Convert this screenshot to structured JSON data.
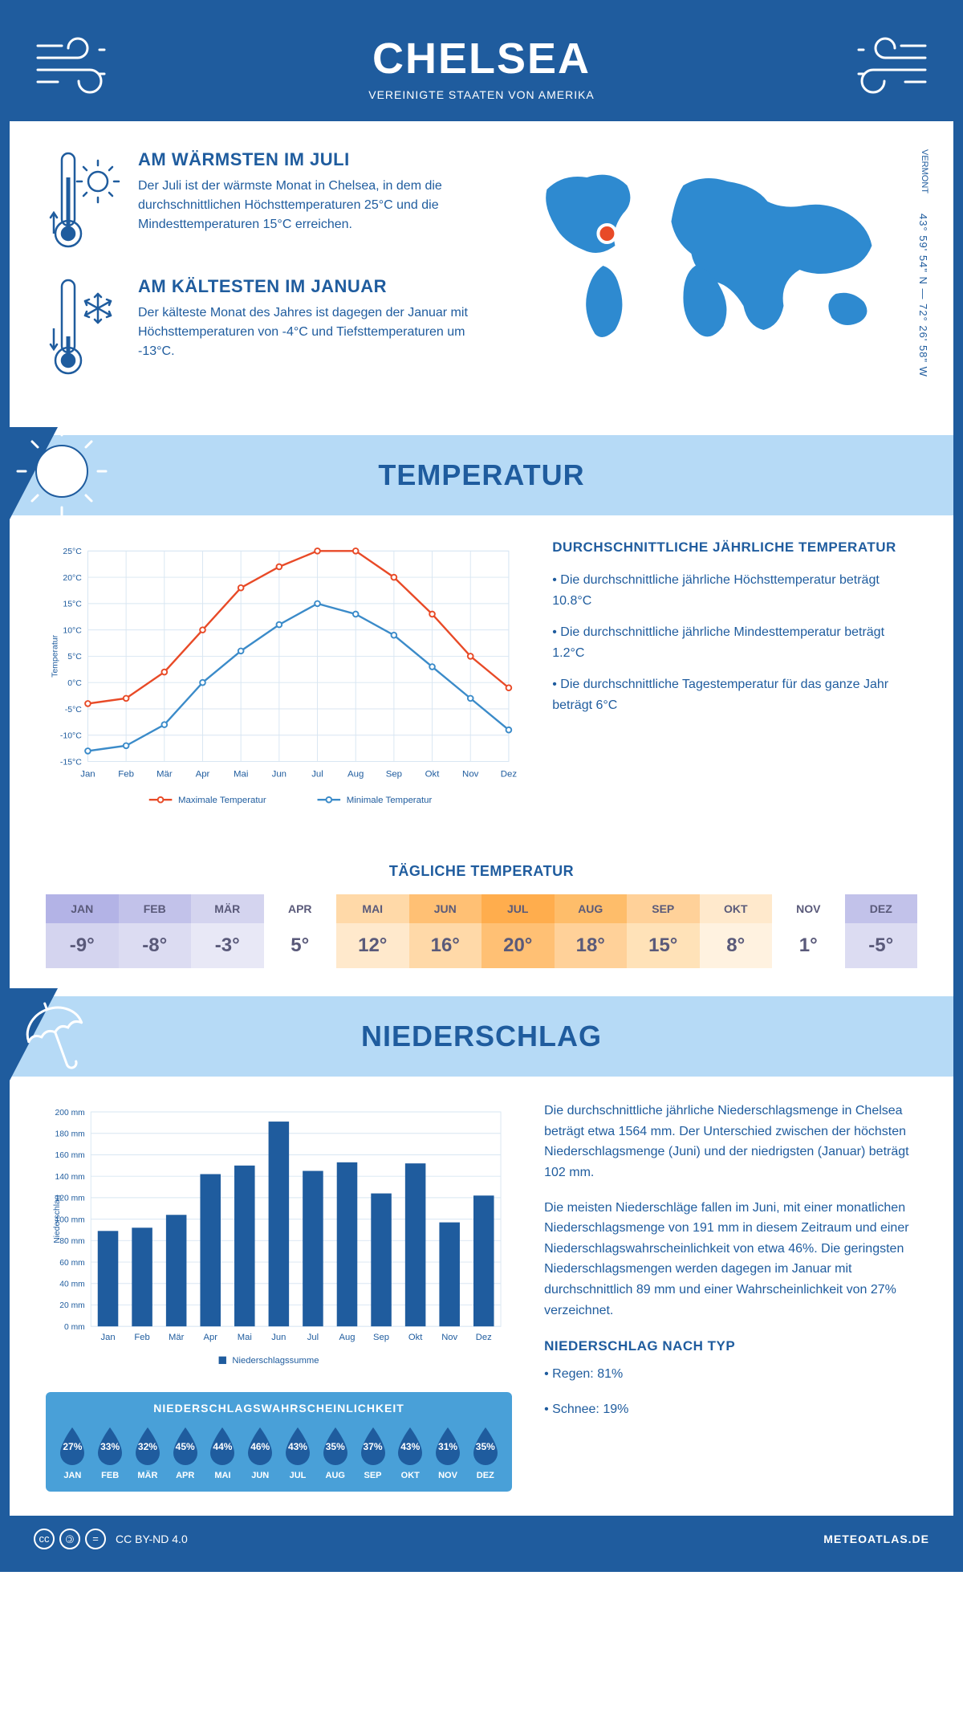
{
  "header": {
    "title": "CHELSEA",
    "subtitle": "VEREINIGTE STAATEN VON AMERIKA"
  },
  "location": {
    "region": "VERMONT",
    "coords": "43° 59' 54\" N — 72° 26' 58\" W",
    "marker_color": "#e84a27"
  },
  "warmest": {
    "title": "AM WÄRMSTEN IM JULI",
    "text": "Der Juli ist der wärmste Monat in Chelsea, in dem die durchschnittlichen Höchsttemperaturen 25°C und die Mindesttemperaturen 15°C erreichen."
  },
  "coldest": {
    "title": "AM KÄLTESTEN IM JANUAR",
    "text": "Der kälteste Monat des Jahres ist dagegen der Januar mit Höchsttemperaturen von -4°C und Tiefsttemperaturen um -13°C."
  },
  "temp_section": {
    "banner": "TEMPERATUR",
    "chart": {
      "type": "line",
      "months": [
        "Jan",
        "Feb",
        "Mär",
        "Apr",
        "Mai",
        "Jun",
        "Jul",
        "Aug",
        "Sep",
        "Okt",
        "Nov",
        "Dez"
      ],
      "max_values": [
        -4,
        -3,
        2,
        10,
        18,
        22,
        25,
        25,
        20,
        13,
        5,
        -1
      ],
      "min_values": [
        -13,
        -12,
        -8,
        0,
        6,
        11,
        15,
        13,
        9,
        3,
        -3,
        -9
      ],
      "max_color": "#e84a27",
      "min_color": "#3b8bc9",
      "ylabel": "Temperatur",
      "ylim": [
        -15,
        25
      ],
      "ytick_step": 5,
      "grid_color": "#d8e6f2",
      "legend_max": "Maximale Temperatur",
      "legend_min": "Minimale Temperatur"
    },
    "info_title": "DURCHSCHNITTLICHE JÄHRLICHE TEMPERATUR",
    "info_points": [
      "• Die durchschnittliche jährliche Höchsttemperatur beträgt 10.8°C",
      "• Die durchschnittliche jährliche Mindesttemperatur beträgt 1.2°C",
      "• Die durchschnittliche Tagestemperatur für das ganze Jahr beträgt 6°C"
    ]
  },
  "daily": {
    "title": "TÄGLICHE TEMPERATUR",
    "months": [
      "JAN",
      "FEB",
      "MÄR",
      "APR",
      "MAI",
      "JUN",
      "JUL",
      "AUG",
      "SEP",
      "OKT",
      "NOV",
      "DEZ"
    ],
    "values": [
      "-9°",
      "-8°",
      "-3°",
      "5°",
      "12°",
      "16°",
      "20°",
      "18°",
      "15°",
      "8°",
      "1°",
      "-5°"
    ],
    "head_colors": [
      "#b3b3e6",
      "#c2c2ea",
      "#d4d4ef",
      "#ffffff",
      "#ffd9a8",
      "#ffc074",
      "#ffad4d",
      "#febd6a",
      "#ffd199",
      "#ffe9cc",
      "#ffffff",
      "#c2c2ea"
    ],
    "body_colors": [
      "#d4d4ef",
      "#dcdcf2",
      "#e8e8f6",
      "#ffffff",
      "#ffe9cc",
      "#ffd9a8",
      "#ffc074",
      "#ffd199",
      "#ffe2b8",
      "#fff2e0",
      "#ffffff",
      "#dcdcf2"
    ],
    "text_color": "#5a5a7a",
    "warm_text_color": "#5a5a7a"
  },
  "precip_section": {
    "banner": "NIEDERSCHLAG",
    "chart": {
      "type": "bar",
      "months": [
        "Jan",
        "Feb",
        "Mär",
        "Apr",
        "Mai",
        "Jun",
        "Jul",
        "Aug",
        "Sep",
        "Okt",
        "Nov",
        "Dez"
      ],
      "values": [
        89,
        92,
        104,
        142,
        150,
        191,
        145,
        153,
        124,
        152,
        97,
        122
      ],
      "bar_color": "#1f5c9e",
      "ylabel": "Niederschlag",
      "ylim": [
        0,
        200
      ],
      "ytick_step": 20,
      "legend": "Niederschlagssumme",
      "grid_color": "#d8e6f2"
    },
    "text1": "Die durchschnittliche jährliche Niederschlagsmenge in Chelsea beträgt etwa 1564 mm. Der Unterschied zwischen der höchsten Niederschlagsmenge (Juni) und der niedrigsten (Januar) beträgt 102 mm.",
    "text2": "Die meisten Niederschläge fallen im Juni, mit einer monatlichen Niederschlagsmenge von 191 mm in diesem Zeitraum und einer Niederschlagswahrscheinlichkeit von etwa 46%. Die geringsten Niederschlagsmengen werden dagegen im Januar mit durchschnittlich 89 mm und einer Wahrscheinlichkeit von 27% verzeichnet.",
    "type_title": "NIEDERSCHLAG NACH TYP",
    "type_points": [
      "• Regen: 81%",
      "• Schnee: 19%"
    ]
  },
  "probability": {
    "title": "NIEDERSCHLAGSWAHRSCHEINLICHKEIT",
    "months": [
      "JAN",
      "FEB",
      "MÄR",
      "APR",
      "MAI",
      "JUN",
      "JUL",
      "AUG",
      "SEP",
      "OKT",
      "NOV",
      "DEZ"
    ],
    "values": [
      "27%",
      "33%",
      "32%",
      "45%",
      "44%",
      "46%",
      "43%",
      "35%",
      "37%",
      "43%",
      "31%",
      "35%"
    ],
    "drop_color": "#1f5c9e",
    "box_bg": "#49a0d8"
  },
  "footer": {
    "license": "CC BY-ND 4.0",
    "brand": "METEOATLAS.DE"
  },
  "colors": {
    "primary": "#1f5c9e",
    "light_blue": "#b6daf6",
    "map_blue": "#2e8ad0"
  }
}
